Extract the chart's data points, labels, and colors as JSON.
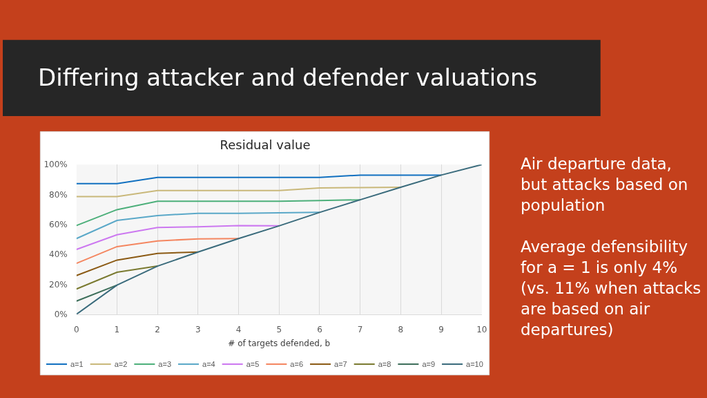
{
  "chart_data": {
    "type": "line",
    "title": "Residual value",
    "xlabel": "# of targets defended, b",
    "categories": [
      "0",
      "1",
      "2",
      "3",
      "4",
      "5",
      "6",
      "7",
      "8",
      "9",
      "10"
    ],
    "series": [
      {
        "name": "a=1",
        "color": "#1170c0",
        "values": [
          87.3,
          87.3,
          91.5,
          91.5,
          91.5,
          91.5,
          91.5,
          93,
          93,
          93,
          null
        ]
      },
      {
        "name": "a=2",
        "color": "#c9b87a",
        "values": [
          78.6,
          78.6,
          82.7,
          82.7,
          82.7,
          82.7,
          84.4,
          84.7,
          84.9,
          null,
          null
        ]
      },
      {
        "name": "a=3",
        "color": "#4caf7a",
        "values": [
          59.3,
          69.9,
          75.5,
          75.5,
          75.5,
          75.5,
          76.0,
          76.5,
          null,
          null,
          null
        ]
      },
      {
        "name": "a=4",
        "color": "#5aa8c8",
        "values": [
          50.6,
          62.7,
          66.0,
          67.5,
          67.5,
          67.8,
          68.1,
          null,
          null,
          null,
          null
        ]
      },
      {
        "name": "a=5",
        "color": "#cc78f0",
        "values": [
          43.3,
          53.1,
          58.0,
          58.4,
          59.3,
          59.1,
          null,
          null,
          null,
          null,
          null
        ]
      },
      {
        "name": "a=6",
        "color": "#f48660",
        "values": [
          34.0,
          45.2,
          49.0,
          50.4,
          50.6,
          null,
          null,
          null,
          null,
          null,
          null
        ]
      },
      {
        "name": "a=7",
        "color": "#8b5a14",
        "values": [
          25.9,
          36.2,
          40.7,
          41.6,
          null,
          null,
          null,
          null,
          null,
          null,
          null
        ]
      },
      {
        "name": "a=8",
        "color": "#7a7a30",
        "values": [
          16.9,
          28.1,
          32.2,
          null,
          null,
          null,
          null,
          null,
          null,
          null,
          null
        ]
      },
      {
        "name": "a=9",
        "color": "#3d6e5a",
        "values": [
          8.8,
          19.5,
          null,
          null,
          null,
          null,
          null,
          null,
          null,
          null,
          null
        ]
      },
      {
        "name": "a=10",
        "color": "#3a6b7c",
        "values": [
          0,
          19.5,
          32.2,
          41.6,
          50.6,
          59.1,
          68.1,
          76.5,
          84.9,
          93,
          100
        ]
      }
    ],
    "ylim": [
      0,
      100
    ],
    "yticks": [
      {
        "value": 0,
        "label": "0%"
      },
      {
        "value": 20,
        "label": "20%"
      },
      {
        "value": 40,
        "label": "40%"
      },
      {
        "value": 60,
        "label": "60%"
      },
      {
        "value": 80,
        "label": "80%"
      },
      {
        "value": 100,
        "label": "100%"
      }
    ],
    "grid": "x",
    "legend": "bottom",
    "line_style": "solid",
    "annotations": [
      "Differing attacker and defender valuations",
      "Air departure data, but attacks based on population",
      "Average defensibility for a = 1 is only 4% (vs. 11% when attacks are based on air departures)"
    ]
  }
}
